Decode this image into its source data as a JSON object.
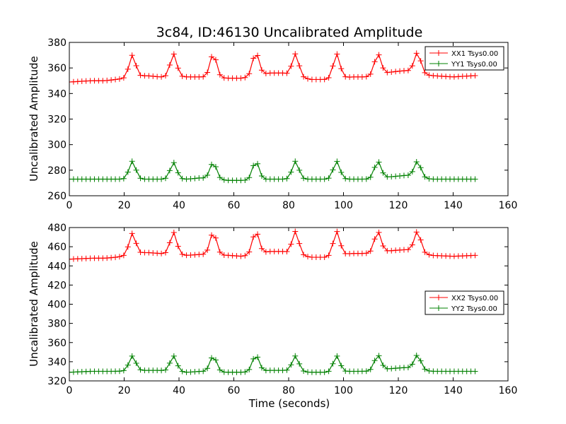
{
  "figure": {
    "background": "#ffffff"
  },
  "chart_data": [
    {
      "type": "line",
      "title": "3c84, ID:46130 Uncalibrated Amplitude",
      "xlabel": "",
      "ylabel": "Uncalibrated Amplitude",
      "xlim": [
        0,
        160
      ],
      "ylim": [
        260,
        380
      ],
      "xticks": [
        "0",
        "20",
        "40",
        "60",
        "80",
        "100",
        "120",
        "140",
        "160"
      ],
      "yticks": [
        "260",
        "280",
        "300",
        "320",
        "340",
        "360",
        "380"
      ],
      "grid": false,
      "legend_position": "top-right",
      "marker": "+",
      "peak_times": [
        23,
        38,
        52.5,
        68,
        82.5,
        97.5,
        112.5,
        127
      ],
      "series": [
        {
          "name": "XX1 Tsys0.00",
          "color": "#ff0000",
          "points": [
            [
              0,
              349
            ],
            [
              8,
              350
            ],
            [
              13,
              350
            ],
            [
              17,
              351
            ],
            [
              23,
              370
            ],
            [
              28,
              354
            ],
            [
              33,
              353
            ],
            [
              38,
              371
            ],
            [
              43,
              353
            ],
            [
              48,
              353
            ],
            [
              52.5,
              371
            ],
            [
              58,
              352
            ],
            [
              63,
              352
            ],
            [
              68,
              372
            ],
            [
              73,
              356
            ],
            [
              78,
              356
            ],
            [
              82.5,
              371
            ],
            [
              88,
              351
            ],
            [
              93,
              351
            ],
            [
              97.5,
              371
            ],
            [
              103,
              353
            ],
            [
              108,
              353
            ],
            [
              112.5,
              371
            ],
            [
              118,
              357
            ],
            [
              123,
              358
            ],
            [
              127,
              372
            ],
            [
              132,
              354
            ],
            [
              140,
              353
            ],
            [
              148,
              354
            ]
          ]
        },
        {
          "name": "YY1 Tsys0.00",
          "color": "#008000",
          "points": [
            [
              0,
              273
            ],
            [
              8,
              273
            ],
            [
              13,
              273
            ],
            [
              17,
              273
            ],
            [
              23,
              287
            ],
            [
              28,
              273
            ],
            [
              33,
              273
            ],
            [
              38,
              286
            ],
            [
              43,
              273
            ],
            [
              48,
              274
            ],
            [
              52.5,
              286
            ],
            [
              58,
              272
            ],
            [
              63,
              272
            ],
            [
              68,
              287
            ],
            [
              73,
              273
            ],
            [
              78,
              273
            ],
            [
              82.5,
              287
            ],
            [
              88,
              273
            ],
            [
              93,
              273
            ],
            [
              97.5,
              287
            ],
            [
              103,
              273
            ],
            [
              108,
              273
            ],
            [
              112.5,
              287
            ],
            [
              118,
              275
            ],
            [
              123,
              276
            ],
            [
              127,
              287
            ],
            [
              132,
              273
            ],
            [
              140,
              273
            ],
            [
              148,
              273
            ]
          ]
        }
      ]
    },
    {
      "type": "line",
      "title": "",
      "xlabel": "Time (seconds)",
      "ylabel": "Uncalibrated Amplitude",
      "xlim": [
        0,
        160
      ],
      "ylim": [
        320,
        480
      ],
      "xticks": [
        "0",
        "20",
        "40",
        "60",
        "80",
        "100",
        "120",
        "140",
        "160"
      ],
      "yticks": [
        "320",
        "340",
        "360",
        "380",
        "400",
        "420",
        "440",
        "460",
        "480"
      ],
      "grid": false,
      "legend_position": "center-right",
      "marker": "+",
      "peak_times": [
        23,
        38,
        52.5,
        68,
        82.5,
        97.5,
        112.5,
        127
      ],
      "series": [
        {
          "name": "XX2 Tsys0.00",
          "color": "#ff0000",
          "points": [
            [
              0,
              447
            ],
            [
              8,
              448
            ],
            [
              13,
              448
            ],
            [
              17,
              449
            ],
            [
              23,
              474
            ],
            [
              28,
              454
            ],
            [
              33,
              453
            ],
            [
              38,
              475
            ],
            [
              43,
              451
            ],
            [
              48,
              452
            ],
            [
              52.5,
              475
            ],
            [
              58,
              451
            ],
            [
              63,
              450
            ],
            [
              68,
              476
            ],
            [
              73,
              455
            ],
            [
              78,
              455
            ],
            [
              82.5,
              476
            ],
            [
              88,
              449
            ],
            [
              93,
              449
            ],
            [
              97.5,
              476
            ],
            [
              103,
              453
            ],
            [
              108,
              453
            ],
            [
              112.5,
              476
            ],
            [
              118,
              456
            ],
            [
              123,
              457
            ],
            [
              127,
              476
            ],
            [
              132,
              451
            ],
            [
              140,
              450
            ],
            [
              148,
              451
            ]
          ]
        },
        {
          "name": "YY2 Tsys0.00",
          "color": "#008000",
          "points": [
            [
              0,
              329
            ],
            [
              8,
              330
            ],
            [
              13,
              330
            ],
            [
              17,
              330
            ],
            [
              23,
              346
            ],
            [
              28,
              331
            ],
            [
              33,
              331
            ],
            [
              38,
              346
            ],
            [
              43,
              329
            ],
            [
              48,
              330
            ],
            [
              52.5,
              346
            ],
            [
              58,
              329
            ],
            [
              63,
              329
            ],
            [
              68,
              347
            ],
            [
              73,
              331
            ],
            [
              78,
              331
            ],
            [
              82.5,
              346
            ],
            [
              88,
              329
            ],
            [
              93,
              329
            ],
            [
              97.5,
              346
            ],
            [
              103,
              330
            ],
            [
              108,
              330
            ],
            [
              112.5,
              347
            ],
            [
              118,
              333
            ],
            [
              123,
              334
            ],
            [
              127,
              347
            ],
            [
              132,
              330
            ],
            [
              140,
              330
            ],
            [
              148,
              330
            ]
          ]
        }
      ]
    }
  ]
}
